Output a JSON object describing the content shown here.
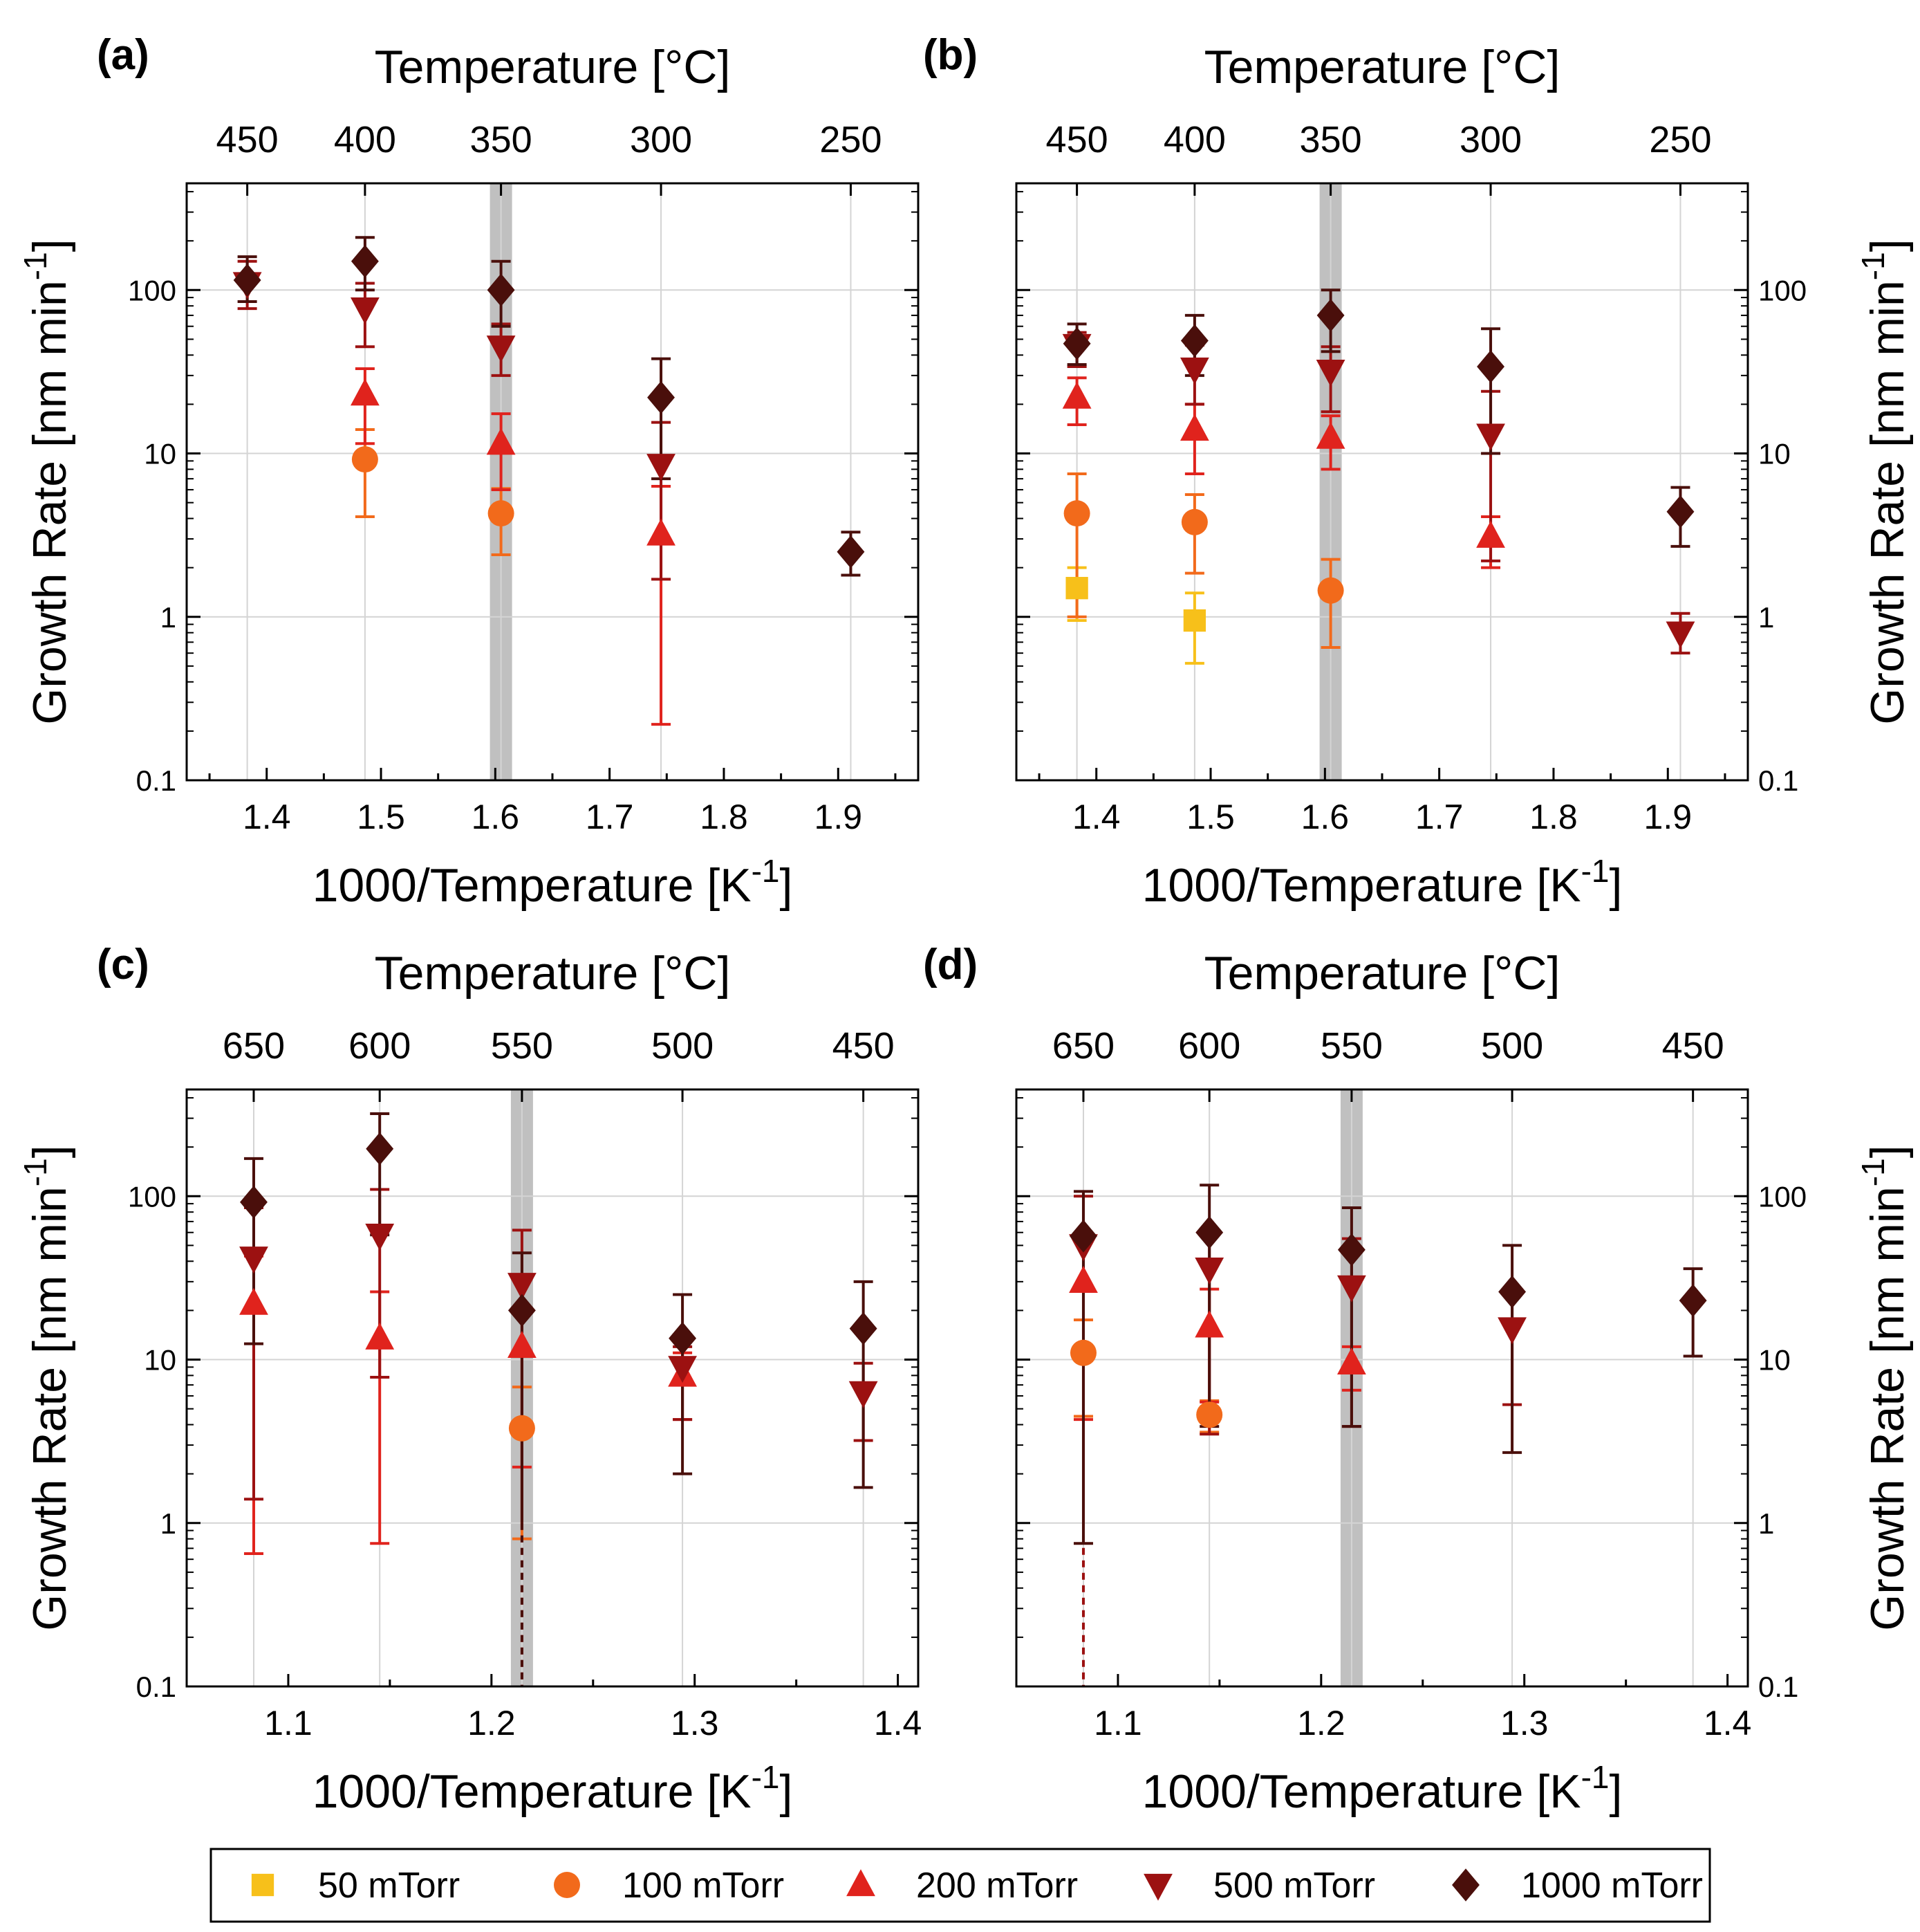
{
  "chart_data": [
    {
      "panel": "(a)",
      "type": "scatter",
      "xlabel_base": "1000/Temperature [K",
      "xlabel_sup": "-1",
      "xlabel_end": "]",
      "top_axis_title": "Temperature [°C]",
      "ylabel_base": "Growth Rate [nm min",
      "ylabel_sup": "-1",
      "ylabel_end": "]",
      "y_scale": "log",
      "ylim": [
        0.1,
        450
      ],
      "xlim": [
        1.33,
        1.97
      ],
      "x_ticks": [
        1.4,
        1.5,
        1.6,
        1.7,
        1.8,
        1.9
      ],
      "x_tick_labels": [
        "1.4",
        "1.5",
        "1.6",
        "1.7",
        "1.8",
        "1.9"
      ],
      "y_tick_labels": [
        "0.1",
        "1",
        "10",
        "100"
      ],
      "top_ticks": [
        {
          "x": 1.383,
          "label": "450"
        },
        {
          "x": 1.486,
          "label": "400"
        },
        {
          "x": 1.605,
          "label": "350"
        },
        {
          "x": 1.745,
          "label": "300"
        },
        {
          "x": 1.911,
          "label": "250"
        }
      ],
      "highlight_x": 1.605,
      "right_axis_labels": false,
      "series": [
        {
          "name": "100 mTorr",
          "points": [
            {
              "x": 1.486,
              "y": 9.2,
              "lo": 4.1,
              "hi": 14
            },
            {
              "x": 1.605,
              "y": 4.3,
              "lo": 2.4,
              "hi": 6.1
            }
          ]
        },
        {
          "name": "200 mTorr",
          "points": [
            {
              "x": 1.486,
              "y": 23,
              "lo": 11.5,
              "hi": 33
            },
            {
              "x": 1.605,
              "y": 11.5,
              "lo": 6,
              "hi": 17.5
            },
            {
              "x": 1.745,
              "y": 3.2,
              "lo": 0.22,
              "hi": 6.3
            }
          ]
        },
        {
          "name": "500 mTorr",
          "points": [
            {
              "x": 1.383,
              "y": 110,
              "lo": 77,
              "hi": 150
            },
            {
              "x": 1.486,
              "y": 77,
              "lo": 45,
              "hi": 110
            },
            {
              "x": 1.605,
              "y": 45,
              "lo": 30,
              "hi": 62
            },
            {
              "x": 1.745,
              "y": 8.5,
              "lo": 1.7,
              "hi": 15.5
            }
          ]
        },
        {
          "name": "1000 mTorr",
          "points": [
            {
              "x": 1.383,
              "y": 115,
              "lo": 85,
              "hi": 160
            },
            {
              "x": 1.486,
              "y": 150,
              "lo": 100,
              "hi": 210
            },
            {
              "x": 1.605,
              "y": 100,
              "lo": 60,
              "hi": 150
            },
            {
              "x": 1.745,
              "y": 22,
              "lo": 7,
              "hi": 38
            },
            {
              "x": 1.911,
              "y": 2.5,
              "lo": 1.8,
              "hi": 3.3
            }
          ]
        }
      ]
    },
    {
      "panel": "(b)",
      "type": "scatter",
      "xlabel_base": "1000/Temperature [K",
      "xlabel_sup": "-1",
      "xlabel_end": "]",
      "top_axis_title": "Temperature [°C]",
      "ylabel_base": "Growth Rate [nm min",
      "ylabel_sup": "-1",
      "ylabel_end": "]",
      "y_scale": "log",
      "ylim": [
        0.1,
        450
      ],
      "xlim": [
        1.33,
        1.97
      ],
      "x_ticks": [
        1.4,
        1.5,
        1.6,
        1.7,
        1.8,
        1.9
      ],
      "x_tick_labels": [
        "1.4",
        "1.5",
        "1.6",
        "1.7",
        "1.8",
        "1.9"
      ],
      "y_tick_labels": [
        "0.1",
        "1",
        "10",
        "100"
      ],
      "top_ticks": [
        {
          "x": 1.383,
          "label": "450"
        },
        {
          "x": 1.486,
          "label": "400"
        },
        {
          "x": 1.605,
          "label": "350"
        },
        {
          "x": 1.745,
          "label": "300"
        },
        {
          "x": 1.911,
          "label": "250"
        }
      ],
      "highlight_x": 1.605,
      "right_axis_labels": true,
      "series": [
        {
          "name": "50 mTorr",
          "points": [
            {
              "x": 1.383,
              "y": 1.5,
              "lo": 0.95,
              "hi": 2.0
            },
            {
              "x": 1.486,
              "y": 0.95,
              "lo": 0.52,
              "hi": 1.4
            }
          ]
        },
        {
          "name": "100 mTorr",
          "points": [
            {
              "x": 1.383,
              "y": 4.3,
              "lo": 1.0,
              "hi": 7.5
            },
            {
              "x": 1.486,
              "y": 3.8,
              "lo": 1.85,
              "hi": 5.6
            },
            {
              "x": 1.605,
              "y": 1.45,
              "lo": 0.65,
              "hi": 2.25
            }
          ]
        },
        {
          "name": "200 mTorr",
          "points": [
            {
              "x": 1.383,
              "y": 22,
              "lo": 15,
              "hi": 29
            },
            {
              "x": 1.486,
              "y": 14,
              "lo": 7.5,
              "hi": 20
            },
            {
              "x": 1.605,
              "y": 12.5,
              "lo": 8,
              "hi": 17
            },
            {
              "x": 1.745,
              "y": 3.1,
              "lo": 2.0,
              "hi": 4.1
            }
          ]
        },
        {
          "name": "500 mTorr",
          "points": [
            {
              "x": 1.383,
              "y": 46,
              "lo": 34,
              "hi": 55
            },
            {
              "x": 1.486,
              "y": 33,
              "lo": 20,
              "hi": 46
            },
            {
              "x": 1.605,
              "y": 32,
              "lo": 18,
              "hi": 45
            },
            {
              "x": 1.745,
              "y": 13,
              "lo": 2.2,
              "hi": 24
            },
            {
              "x": 1.911,
              "y": 0.8,
              "lo": 0.6,
              "hi": 1.05
            }
          ]
        },
        {
          "name": "1000 mTorr",
          "points": [
            {
              "x": 1.383,
              "y": 47,
              "lo": 35,
              "hi": 62
            },
            {
              "x": 1.486,
              "y": 49,
              "lo": 30,
              "hi": 70
            },
            {
              "x": 1.605,
              "y": 70,
              "lo": 42,
              "hi": 100
            },
            {
              "x": 1.745,
              "y": 34,
              "lo": 10,
              "hi": 58
            },
            {
              "x": 1.911,
              "y": 4.4,
              "lo": 2.7,
              "hi": 6.2
            }
          ]
        }
      ]
    },
    {
      "panel": "(c)",
      "type": "scatter",
      "xlabel_base": "1000/Temperature [K",
      "xlabel_sup": "-1",
      "xlabel_end": "]",
      "top_axis_title": "Temperature [°C]",
      "ylabel_base": "Growth Rate [nm min",
      "ylabel_sup": "-1",
      "ylabel_end": "]",
      "y_scale": "log",
      "ylim": [
        0.1,
        450
      ],
      "xlim": [
        1.05,
        1.41
      ],
      "x_ticks": [
        1.1,
        1.2,
        1.3,
        1.4
      ],
      "x_tick_labels": [
        "1.1",
        "1.2",
        "1.3",
        "1.4"
      ],
      "y_tick_labels": [
        "0.1",
        "1",
        "10",
        "100"
      ],
      "top_ticks": [
        {
          "x": 1.083,
          "label": "650"
        },
        {
          "x": 1.145,
          "label": "600"
        },
        {
          "x": 1.215,
          "label": "550"
        },
        {
          "x": 1.294,
          "label": "500"
        },
        {
          "x": 1.383,
          "label": "450"
        }
      ],
      "highlight_x": 1.215,
      "right_axis_labels": false,
      "series": [
        {
          "name": "100 mTorr",
          "points": [
            {
              "x": 1.215,
              "y": 3.8,
              "lo": 0.8,
              "hi": 6.8
            }
          ]
        },
        {
          "name": "200 mTorr",
          "points": [
            {
              "x": 1.083,
              "y": 22,
              "lo": 0.65,
              "hi": 43
            },
            {
              "x": 1.145,
              "y": 13.5,
              "lo": 0.75,
              "hi": 26
            },
            {
              "x": 1.215,
              "y": 12,
              "lo": 2.2,
              "hi": 21
            },
            {
              "x": 1.294,
              "y": 8,
              "lo": 4.3,
              "hi": 11
            }
          ]
        },
        {
          "name": "500 mTorr",
          "points": [
            {
              "x": 1.083,
              "y": 42,
              "lo": 1.4,
              "hi": 85
            },
            {
              "x": 1.145,
              "y": 58,
              "lo": 7.8,
              "hi": 110
            },
            {
              "x": 1.215,
              "y": 29,
              "lo": 0.1,
              "hi": 62,
              "lo_dashed": true
            },
            {
              "x": 1.294,
              "y": 9,
              "lo": 4.3,
              "hi": 12
            },
            {
              "x": 1.383,
              "y": 6.3,
              "lo": 3.2,
              "hi": 9.5
            }
          ]
        },
        {
          "name": "1000 mTorr",
          "points": [
            {
              "x": 1.083,
              "y": 92,
              "lo": 12.5,
              "hi": 170
            },
            {
              "x": 1.145,
              "y": 195,
              "lo": 58,
              "hi": 320
            },
            {
              "x": 1.215,
              "y": 20,
              "lo": 0.1,
              "hi": 45,
              "lo_dashed": true
            },
            {
              "x": 1.294,
              "y": 13.5,
              "lo": 2.0,
              "hi": 25
            },
            {
              "x": 1.383,
              "y": 15.5,
              "lo": 1.65,
              "hi": 30
            }
          ]
        }
      ]
    },
    {
      "panel": "(d)",
      "type": "scatter",
      "xlabel_base": "1000/Temperature [K",
      "xlabel_sup": "-1",
      "xlabel_end": "]",
      "top_axis_title": "Temperature [°C]",
      "ylabel_base": "Growth Rate [nm min",
      "ylabel_sup": "-1",
      "ylabel_end": "]",
      "y_scale": "log",
      "ylim": [
        0.1,
        450
      ],
      "xlim": [
        1.05,
        1.41
      ],
      "x_ticks": [
        1.1,
        1.2,
        1.3,
        1.4
      ],
      "x_tick_labels": [
        "1.1",
        "1.2",
        "1.3",
        "1.4"
      ],
      "y_tick_labels": [
        "0.1",
        "1",
        "10",
        "100"
      ],
      "top_ticks": [
        {
          "x": 1.083,
          "label": "650"
        },
        {
          "x": 1.145,
          "label": "600"
        },
        {
          "x": 1.215,
          "label": "550"
        },
        {
          "x": 1.294,
          "label": "500"
        },
        {
          "x": 1.383,
          "label": "450"
        }
      ],
      "highlight_x": 1.215,
      "right_axis_labels": true,
      "series": [
        {
          "name": "100 mTorr",
          "points": [
            {
              "x": 1.083,
              "y": 11,
              "lo": 4.5,
              "hi": 17.5
            },
            {
              "x": 1.145,
              "y": 4.6,
              "lo": 3.6,
              "hi": 5.6
            }
          ]
        },
        {
          "name": "200 mTorr",
          "points": [
            {
              "x": 1.083,
              "y": 30,
              "lo": 4.3,
              "hi": 54
            },
            {
              "x": 1.145,
              "y": 16,
              "lo": 5.5,
              "hi": 27
            },
            {
              "x": 1.215,
              "y": 9.5,
              "lo": 6.5,
              "hi": 12
            }
          ]
        },
        {
          "name": "500 mTorr",
          "points": [
            {
              "x": 1.083,
              "y": 50,
              "lo": 0.1,
              "hi": 100,
              "lo_dashed": true
            },
            {
              "x": 1.145,
              "y": 36,
              "lo": 3.5,
              "hi": 60
            },
            {
              "x": 1.215,
              "y": 28,
              "lo": 3.9,
              "hi": 55
            },
            {
              "x": 1.294,
              "y": 15.5,
              "lo": 5.3,
              "hi": 26
            }
          ]
        },
        {
          "name": "1000 mTorr",
          "points": [
            {
              "x": 1.083,
              "y": 57,
              "lo": 0.75,
              "hi": 107
            },
            {
              "x": 1.145,
              "y": 60,
              "lo": 3.9,
              "hi": 117
            },
            {
              "x": 1.215,
              "y": 47,
              "lo": 3.9,
              "hi": 85
            },
            {
              "x": 1.294,
              "y": 26,
              "lo": 2.7,
              "hi": 50
            },
            {
              "x": 1.383,
              "y": 23,
              "lo": 10.5,
              "hi": 36
            }
          ]
        }
      ]
    }
  ],
  "legend": {
    "items": [
      {
        "name": "50 mTorr",
        "label": "50 mTorr",
        "marker": "square",
        "color": "#F7C01A"
      },
      {
        "name": "100 mTorr",
        "label": "100 mTorr",
        "marker": "circle",
        "color": "#F26A1B"
      },
      {
        "name": "200 mTorr",
        "label": "200 mTorr",
        "marker": "triangle-up",
        "color": "#E0231D"
      },
      {
        "name": "500 mTorr",
        "label": "500 mTorr",
        "marker": "triangle-down",
        "color": "#9C1111"
      },
      {
        "name": "1000 mTorr",
        "label": "1000 mTorr",
        "marker": "diamond",
        "color": "#4A0F0B"
      }
    ]
  },
  "colors": {
    "grid": "#d4d4d4",
    "highlight_band": "#c0c0c0",
    "axis": "#000000"
  }
}
